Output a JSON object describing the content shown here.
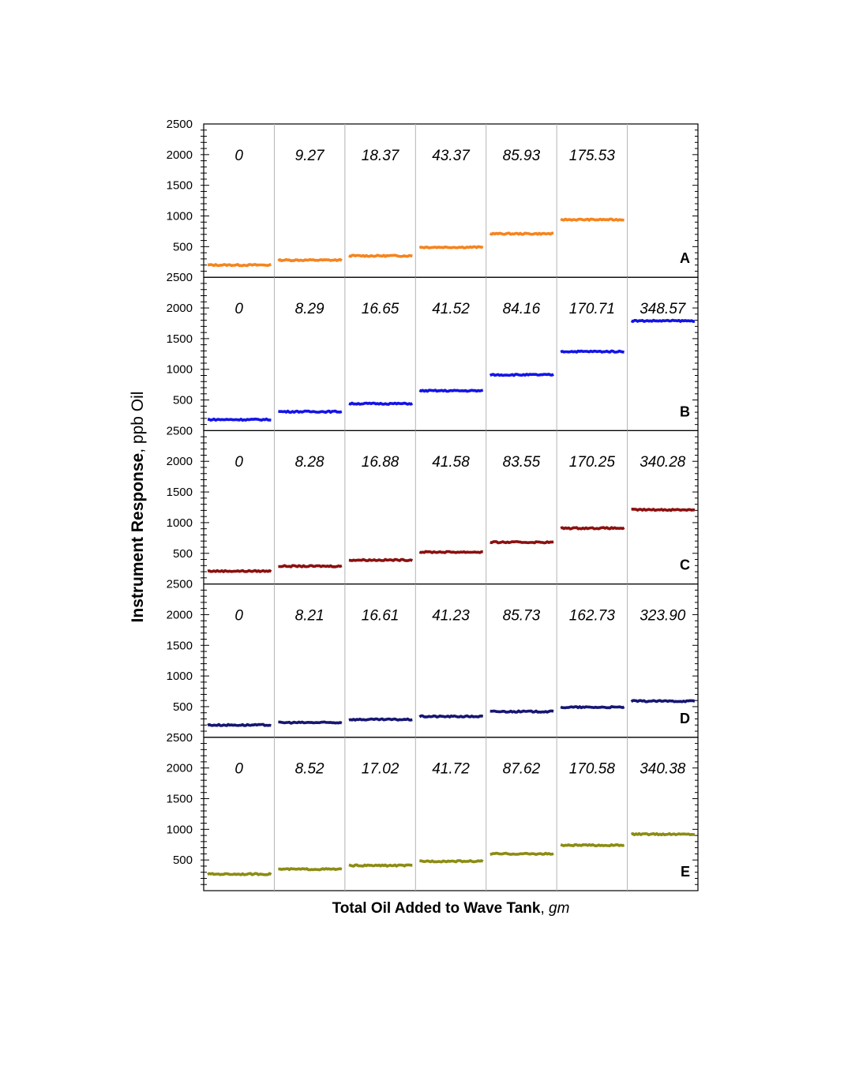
{
  "chart_data": {
    "type": "line",
    "ylabel": {
      "bold": "Instrument Response",
      "normal": ", ppb Oil"
    },
    "xlabel": {
      "bold": "Total Oil Added to Wave Tank",
      "italic": "gm"
    },
    "ylim": [
      0,
      2500
    ],
    "yticks": [
      500,
      1000,
      1500,
      2000,
      2500
    ],
    "segments": 7,
    "panels": [
      {
        "id": "A",
        "color": "#f5841f",
        "segment_labels": [
          "0",
          "9.27",
          "18.37",
          "43.37",
          "85.93",
          "175.53",
          ""
        ],
        "values": [
          200,
          280,
          350,
          490,
          710,
          940,
          null
        ]
      },
      {
        "id": "B",
        "color": "#1414e6",
        "segment_labels": [
          "0",
          "8.29",
          "16.65",
          "41.52",
          "84.16",
          "170.71",
          "348.57"
        ],
        "values": [
          180,
          310,
          440,
          650,
          910,
          1290,
          1790
        ]
      },
      {
        "id": "C",
        "color": "#8b1010",
        "segment_labels": [
          "0",
          "8.28",
          "16.88",
          "41.58",
          "83.55",
          "170.25",
          "340.28"
        ],
        "values": [
          210,
          290,
          390,
          520,
          680,
          910,
          1210
        ]
      },
      {
        "id": "D",
        "color": "#161673",
        "segment_labels": [
          "0",
          "8.21",
          "16.61",
          "41.23",
          "85.73",
          "162.73",
          "323.90"
        ],
        "values": [
          200,
          240,
          290,
          340,
          420,
          490,
          590
        ]
      },
      {
        "id": "E",
        "color": "#8c8c14",
        "segment_labels": [
          "0",
          "8.52",
          "17.02",
          "41.72",
          "87.62",
          "170.58",
          "340.38"
        ],
        "values": [
          270,
          350,
          410,
          480,
          600,
          740,
          920
        ]
      }
    ]
  }
}
